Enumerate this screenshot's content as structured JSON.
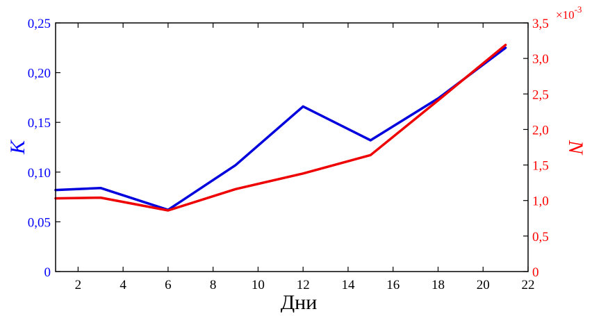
{
  "chart_data": {
    "type": "line",
    "xlabel": "Дни",
    "x": [
      1,
      3,
      6,
      9,
      12,
      15,
      18,
      21
    ],
    "xlim": [
      1,
      22
    ],
    "xticks": [
      2,
      4,
      6,
      8,
      10,
      12,
      14,
      16,
      18,
      20,
      22
    ],
    "xtick_labels": [
      "2",
      "4",
      "6",
      "8",
      "10",
      "12",
      "14",
      "16",
      "18",
      "20",
      "22"
    ],
    "left_axis": {
      "label": "K",
      "color": "#0000ff",
      "ylim": [
        0,
        0.25
      ],
      "ticks": [
        0,
        0.05,
        0.1,
        0.15,
        0.2,
        0.25
      ],
      "tick_labels": [
        "0",
        "0,05",
        "0,10",
        "0,15",
        "0,20",
        "0,25"
      ]
    },
    "right_axis": {
      "label": "N",
      "color": "#ff0000",
      "ylim": [
        0,
        3.5
      ],
      "ticks": [
        0,
        0.5,
        1.0,
        1.5,
        2.0,
        2.5,
        3.0,
        3.5
      ],
      "tick_labels": [
        "0",
        "0,5",
        "1,0",
        "1,5",
        "2,0",
        "2,5",
        "3,0",
        "3,5"
      ],
      "multiplier_base": "×10",
      "multiplier_exp": "-3"
    },
    "series": [
      {
        "axis": "left",
        "color": "#0000dd",
        "values": [
          0.082,
          0.084,
          0.062,
          0.107,
          0.166,
          0.132,
          0.174,
          0.225
        ]
      },
      {
        "axis": "right",
        "color": "#ee0000",
        "values": [
          1.03,
          1.04,
          0.86,
          1.16,
          1.38,
          1.64,
          2.41,
          3.19
        ]
      }
    ],
    "grid": false,
    "legend": "none"
  }
}
